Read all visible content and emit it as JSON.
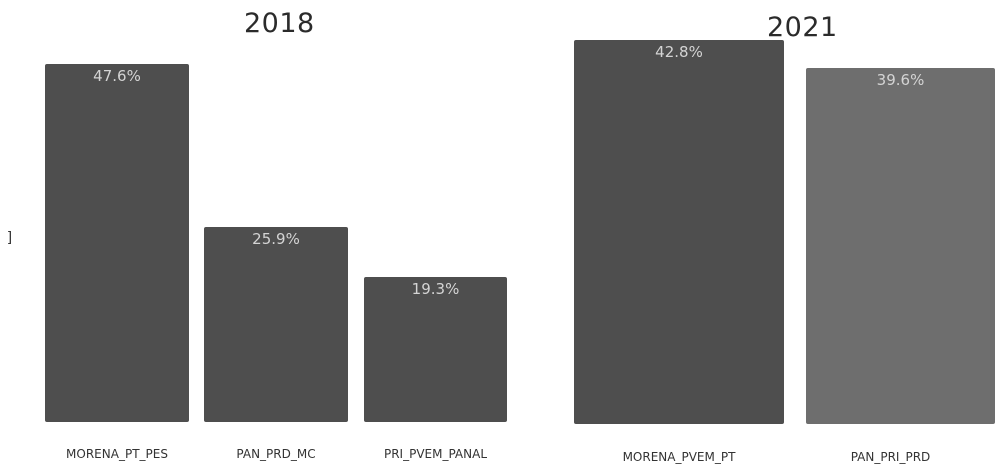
{
  "colors": {
    "bar_dark": "#4e4e4e",
    "bar_light": "#6e6e6e",
    "label": "#d4d4d4"
  },
  "edge_glyph": "]",
  "chart_data": [
    {
      "type": "bar",
      "title": "2018",
      "categories": [
        "MORENA_PT_PES",
        "PAN_PRD_MC",
        "PRI_PVEM_PANAL"
      ],
      "values": [
        47.6,
        25.9,
        19.3
      ],
      "data_labels": [
        "47.6%",
        "25.9%",
        "19.3%"
      ],
      "ylim": [
        0,
        50
      ]
    },
    {
      "type": "bar",
      "title": "2021",
      "categories": [
        "MORENA_PVEM_PT",
        "PAN_PRI_PRD"
      ],
      "values": [
        42.8,
        39.6
      ],
      "data_labels": [
        "42.8%",
        "39.6%"
      ],
      "ylim": [
        0,
        45
      ]
    }
  ]
}
